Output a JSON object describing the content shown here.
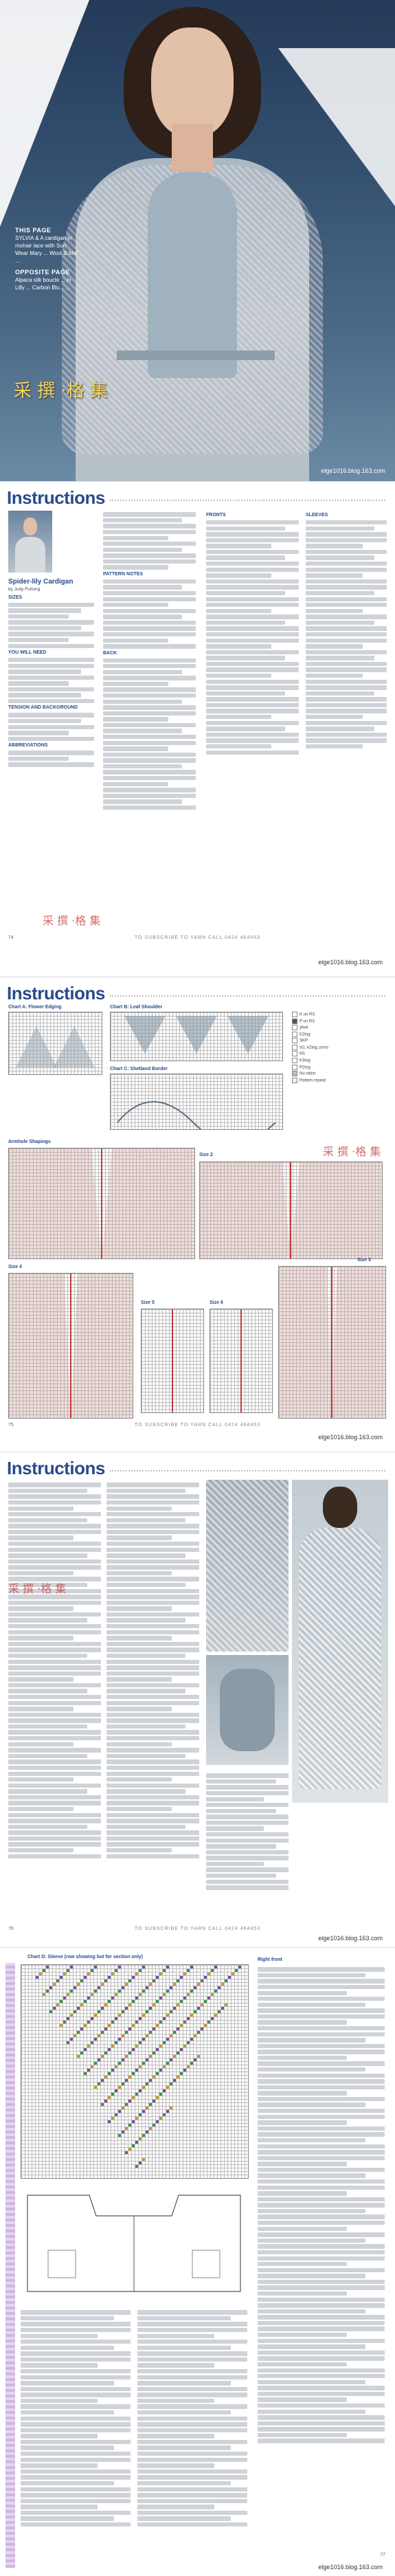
{
  "cover": {
    "caption_heading_1": "THIS PAGE",
    "caption_1": "SYLVIA & A cardigan in mohair lace with Sun Wear Mary ... Wool & Mel ...",
    "caption_heading_2": "OPPOSITE PAGE",
    "caption_2": "Alpaca silk bouclé ... in Lilly ... Carbon Blu... ...",
    "seal": "采 撰 ·格 集",
    "watermark": "elge1016.blog.163.com"
  },
  "instructions_title": "Instructions",
  "page2": {
    "pattern_name": "Spider-lily Cardigan",
    "by": "by Judy Furlong",
    "sections": [
      "SIZES",
      "YOU WILL NEED",
      "TENSION AND BACKGROUND",
      "ABBREVIATIONS",
      "PATTERN NOTES",
      "BACK",
      "FRONTS",
      "SLEEVES"
    ],
    "footer": "TO SUBSCRIBE TO YARN CALL 0424 464453",
    "page_number": "74",
    "blog": "elge1016.blog.163.com",
    "seal": "采 撰 ·格 集"
  },
  "page3": {
    "chart_a": "Chart A: Flower Edging",
    "chart_b": "Chart B: Leaf Shoulder",
    "chart_c": "Chart C: Shetland Border",
    "armhole": "Armhole Shapings",
    "size_labels": [
      "Size 1",
      "Size 2",
      "Size 3",
      "Size 4",
      "Size 5",
      "Size 6"
    ],
    "legend": [
      "K on RS",
      "P on RS",
      "yfwd",
      "K2tog",
      "SKP",
      "sl1, k2tog, psso",
      "M1",
      "K3tog",
      "P2tog",
      "No stitch",
      "Pattern repeat"
    ],
    "footer": "TO SUBSCRIBE TO YARN CALL 0424 464453",
    "page_number": "75",
    "blog": "elge1016.blog.163.com",
    "seal": "采 撰 ·格 集"
  },
  "page4": {
    "footer": "TO SUBSCRIBE TO YARN CALL 0424 464453",
    "page_number": "76",
    "blog": "elge1016.blog.163.com",
    "seal": "采 撰 ·格 集"
  },
  "page5": {
    "chart_d": "Chart D: Sleeve (row showing but for section only)",
    "right_front": "Right front",
    "page_number": "77",
    "blog": "elge1016.blog.163.com"
  }
}
